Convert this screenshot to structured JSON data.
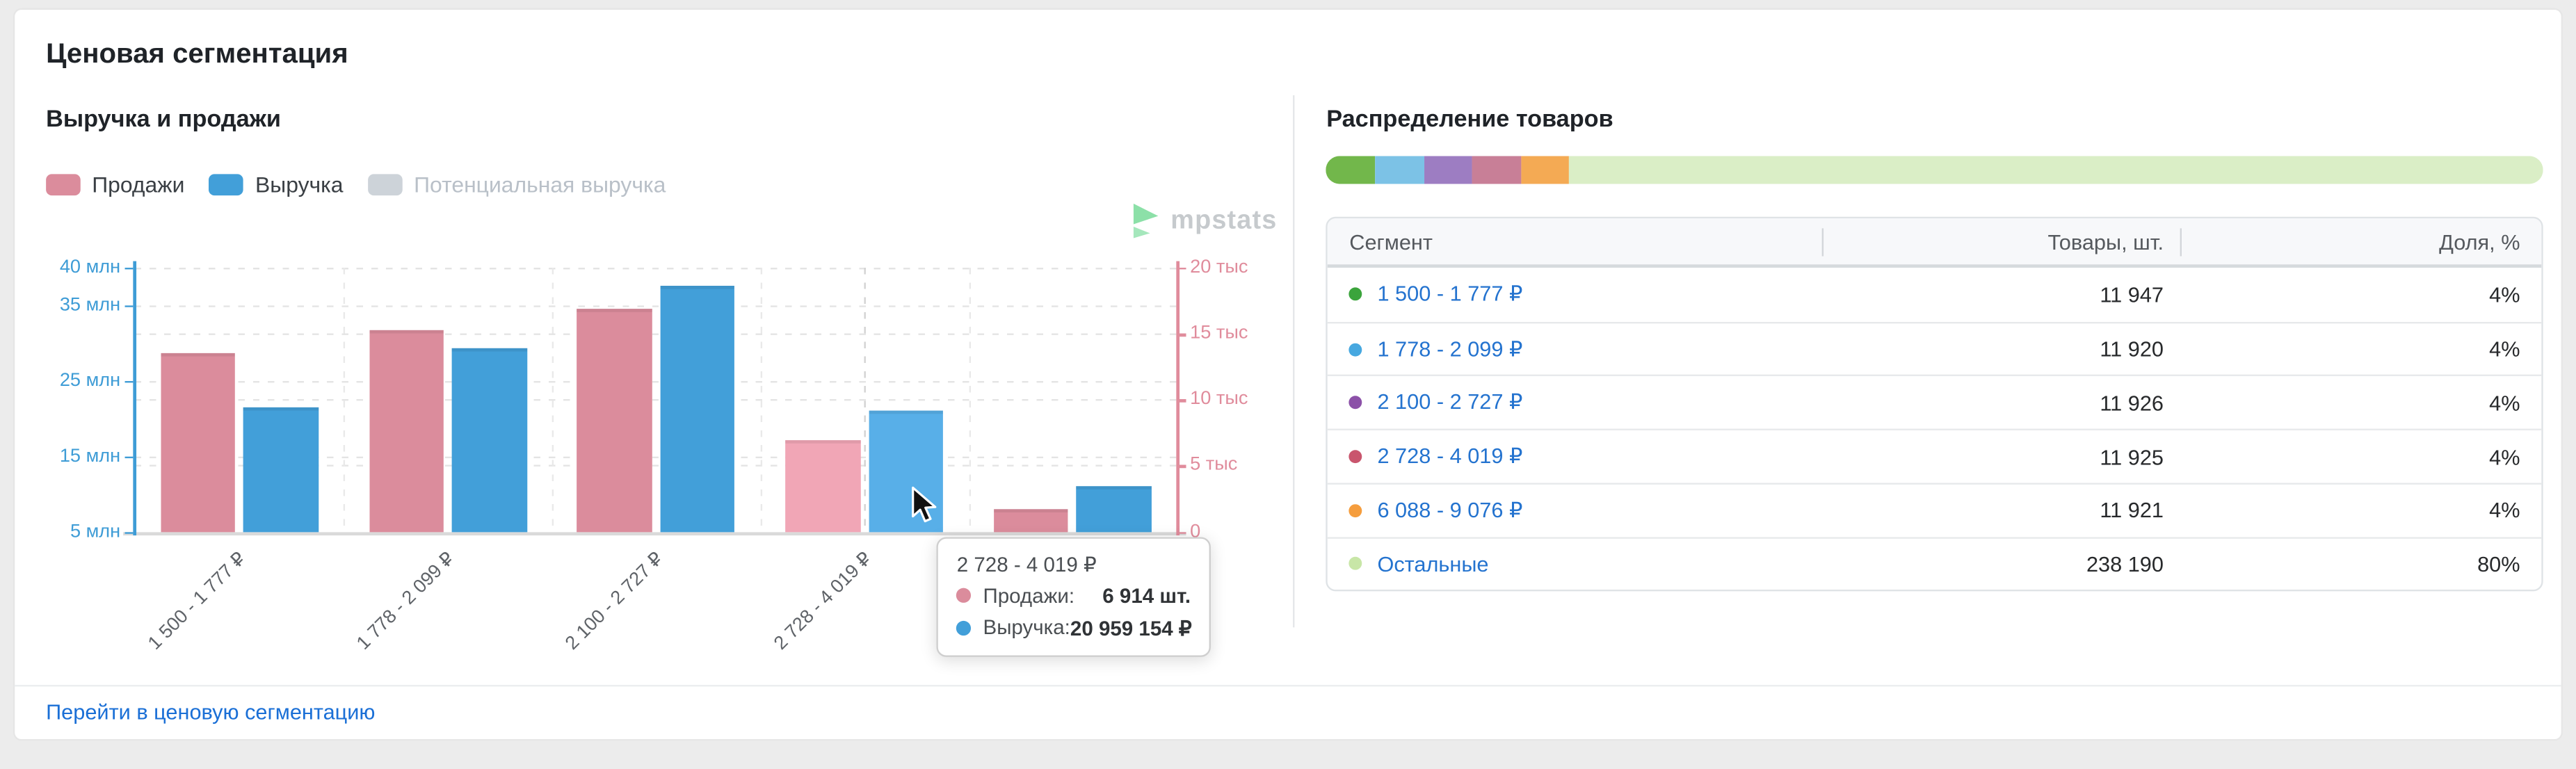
{
  "page": {
    "title": "Ценовая сегментация",
    "background": "#ececec"
  },
  "revenue_chart": {
    "title": "Выручка и продажи",
    "legend": [
      {
        "label": "Продажи",
        "color": "#DB8C9C",
        "disabled": false
      },
      {
        "label": "Выручка",
        "color": "#429FD9",
        "disabled": false
      },
      {
        "label": "Потенциальная выручка",
        "color": "#CDD3D9",
        "disabled": true
      }
    ],
    "watermark": "mpstats",
    "footer_link": "Перейти в ценовую сегментацию"
  },
  "chart_data": {
    "type": "bar",
    "categories": [
      "1 500 - 1 777 ₽",
      "1 778 - 2 099 ₽",
      "2 100 - 2 727 ₽",
      "2 728 - 4 019 ₽",
      "6 088 - 9 076 ₽"
    ],
    "series": [
      {
        "name": "Продажи",
        "axis": "right",
        "unit": "шт.",
        "color": "#DB8C9C",
        "hover_color": "#F1A6B6",
        "values": [
          13550,
          15300,
          16900,
          6914,
          1700
        ]
      },
      {
        "name": "Выручка",
        "axis": "left",
        "unit": "₽",
        "color": "#429FD9",
        "hover_color": "#58AFE8",
        "values": [
          21500000,
          29300000,
          37500000,
          20959154,
          11000000
        ]
      }
    ],
    "left_axis": {
      "color": "#3E9CD6",
      "min": 5000000,
      "max": 40000000,
      "ticks": [
        {
          "value": 40000000,
          "label": "40 млн"
        },
        {
          "value": 35000000,
          "label": "35 млн"
        },
        {
          "value": 25000000,
          "label": "25 млн"
        },
        {
          "value": 15000000,
          "label": "15 млн"
        },
        {
          "value": 5000000,
          "label": "5 млн"
        }
      ]
    },
    "right_axis": {
      "color": "#E08C9C",
      "min": 0,
      "max": 20000,
      "ticks": [
        {
          "value": 20000,
          "label": "20 тыс"
        },
        {
          "value": 15000,
          "label": "15 тыс"
        },
        {
          "value": 10000,
          "label": "10 тыс"
        },
        {
          "value": 5000,
          "label": "5 тыс"
        },
        {
          "value": 0,
          "label": "0"
        }
      ]
    },
    "highlighted_category_index": 3,
    "grid": "dashed",
    "legend_position": "top-left"
  },
  "tooltip": {
    "title": "2 728 - 4 019 ₽",
    "rows": [
      {
        "label": "Продажи:",
        "value": "6 914 шт.",
        "color": "#DB8C9C"
      },
      {
        "label": "Выручка:",
        "value": "20 959 154 ₽",
        "color": "#429FD9"
      }
    ]
  },
  "distribution": {
    "title": "Распределение товаров",
    "colorbar": [
      {
        "color": "#72B74B",
        "percent": 4
      },
      {
        "color": "#7CC2E6",
        "percent": 4
      },
      {
        "color": "#9D7DC2",
        "percent": 4
      },
      {
        "color": "#C87F97",
        "percent": 4
      },
      {
        "color": "#F4AA54",
        "percent": 4
      },
      {
        "color": "#DAEEC6",
        "percent": 80
      }
    ],
    "table": {
      "headers": [
        "Сегмент",
        "Товары, шт.",
        "Доля, %"
      ],
      "rows": [
        {
          "dot_color": "#3BA43C",
          "segment": "1 500 - 1 777 ₽",
          "items": "11 947",
          "share": "4%"
        },
        {
          "dot_color": "#47A8E0",
          "segment": "1 778 - 2 099 ₽",
          "items": "11 920",
          "share": "4%"
        },
        {
          "dot_color": "#8C51A8",
          "segment": "2 100 - 2 727 ₽",
          "items": "11 926",
          "share": "4%"
        },
        {
          "dot_color": "#C9556D",
          "segment": "2 728 - 4 019 ₽",
          "items": "11 925",
          "share": "4%"
        },
        {
          "dot_color": "#F59D3D",
          "segment": "6 088 - 9 076 ₽",
          "items": "11 921",
          "share": "4%"
        },
        {
          "dot_color": "#C8E6A7",
          "segment": "Остальные",
          "items": "238 190",
          "share": "80%"
        }
      ]
    }
  }
}
